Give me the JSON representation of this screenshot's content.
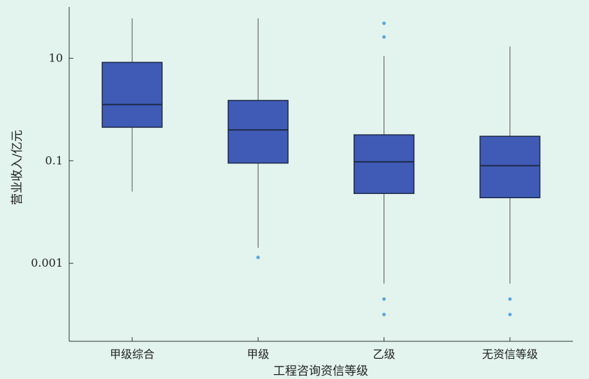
{
  "chart_data": {
    "type": "box",
    "xlabel": "工程咨询资信等级",
    "ylabel": "营业收入/亿元",
    "yscale": "log",
    "ylim": [
      3e-05,
      100
    ],
    "yticks": [
      {
        "value": 10,
        "label": "10"
      },
      {
        "value": 0.1,
        "label": "0.1"
      },
      {
        "value": 0.001,
        "label": "0.001"
      }
    ],
    "categories": [
      "甲级综合",
      "甲级",
      "乙级",
      "无资信等级"
    ],
    "boxes": [
      {
        "category": "甲级综合",
        "whisker_low": 0.025,
        "q1": 0.45,
        "median": 1.25,
        "q3": 8.3,
        "whisker_high": 60,
        "outliers": []
      },
      {
        "category": "甲级",
        "whisker_low": 0.002,
        "q1": 0.09,
        "median": 0.4,
        "q3": 1.5,
        "whisker_high": 60,
        "outliers": [
          0.0013
        ]
      },
      {
        "category": "乙级",
        "whisker_low": 0.0004,
        "q1": 0.023,
        "median": 0.095,
        "q3": 0.32,
        "whisker_high": 11,
        "outliers": [
          48,
          26,
          0.0002,
          0.0001
        ]
      },
      {
        "category": "无资信等级",
        "whisker_low": 0.0004,
        "q1": 0.019,
        "median": 0.08,
        "q3": 0.3,
        "whisker_high": 17,
        "outliers": [
          0.0002,
          0.0001
        ]
      }
    ],
    "colors": {
      "box_fill": "#3f5bb5",
      "box_edge": "#1e2a4a",
      "median": "#1e2a4a",
      "whisker": "#555555",
      "outlier": "#5aa6e0",
      "background": "#e3f4ee"
    }
  }
}
